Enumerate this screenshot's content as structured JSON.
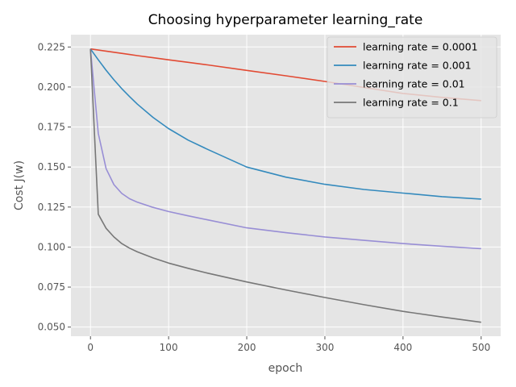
{
  "chart_data": {
    "type": "line",
    "title": "Choosing hyperparameter learning_rate",
    "xlabel": "epoch",
    "ylabel": "Cost  J(w)",
    "xlim": [
      -25,
      525
    ],
    "ylim": [
      0.0443,
      0.2327
    ],
    "xticks": [
      0,
      100,
      200,
      300,
      400,
      500
    ],
    "xtick_labels": [
      "0",
      "100",
      "200",
      "300",
      "400",
      "500"
    ],
    "yticks": [
      0.05,
      0.075,
      0.1,
      0.125,
      0.15,
      0.175,
      0.2,
      0.225
    ],
    "ytick_labels": [
      "0.050",
      "0.075",
      "0.100",
      "0.125",
      "0.150",
      "0.175",
      "0.200",
      "0.225"
    ],
    "grid": true,
    "legend_position": "top-right",
    "x": [
      0,
      10,
      20,
      30,
      40,
      50,
      60,
      80,
      100,
      125,
      150,
      200,
      250,
      300,
      350,
      400,
      450,
      500
    ],
    "series": [
      {
        "name": "learning rate = 0.0001",
        "color": "#E24A33",
        "values": [
          0.2238,
          0.2231,
          0.2224,
          0.2217,
          0.221,
          0.2203,
          0.2196,
          0.2183,
          0.217,
          0.2154,
          0.2138,
          0.2104,
          0.207,
          0.2035,
          0.1997,
          0.196,
          0.1935,
          0.1915
        ]
      },
      {
        "name": "learning rate = 0.001",
        "color": "#348ABD",
        "values": [
          0.2238,
          0.217,
          0.2105,
          0.2045,
          0.199,
          0.194,
          0.1893,
          0.181,
          0.174,
          0.1668,
          0.161,
          0.15,
          0.1437,
          0.1392,
          0.136,
          0.1337,
          0.1315,
          0.13
        ]
      },
      {
        "name": "learning rate = 0.01",
        "color": "#988ED5",
        "values": [
          0.2238,
          0.171,
          0.149,
          0.139,
          0.1335,
          0.1302,
          0.128,
          0.1248,
          0.1222,
          0.1195,
          0.117,
          0.112,
          0.109,
          0.1063,
          0.1042,
          0.1022,
          0.1005,
          0.099
        ]
      },
      {
        "name": "learning rate = 0.1",
        "color": "#777777",
        "values": [
          0.2238,
          0.1205,
          0.1117,
          0.1063,
          0.1022,
          0.0993,
          0.097,
          0.0932,
          0.09,
          0.0867,
          0.0837,
          0.0782,
          0.0732,
          0.0685,
          0.064,
          0.0598,
          0.0563,
          0.053
        ]
      }
    ]
  }
}
